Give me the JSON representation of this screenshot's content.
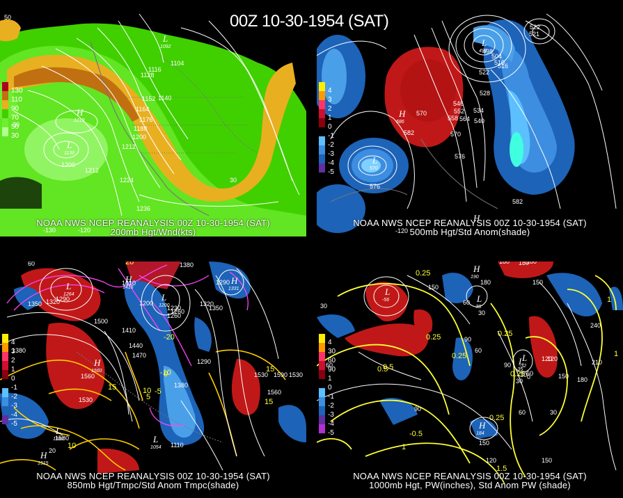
{
  "title": "00Z 10-30-1954 (SAT)",
  "panels": [
    {
      "id": "p1",
      "caption_line1": "NOAA NWS NCEP REANALYSIS 00Z 10-30-1954 (SAT)",
      "caption_line2": "200mb Hgt/Wnd(kts)",
      "legend": [
        "130",
        "110",
        "90",
        "70",
        "50",
        "30"
      ],
      "legend_colors": [
        "#b00020",
        "#c07010",
        "#e8b020",
        "#40d000",
        "#70ee30",
        "#b0ff90"
      ],
      "contour_labels": [
        "1104",
        "1116",
        "1128",
        "1140",
        "1152",
        "1164",
        "1176",
        "1188",
        "1200",
        "1212",
        "1212",
        "1224",
        "1236",
        "1200"
      ],
      "centers": [
        {
          "type": "H",
          "value": "1219"
        },
        {
          "type": "L",
          "value": "1136"
        },
        {
          "type": "L",
          "value": "1092"
        }
      ],
      "lon_labels": [
        "-130",
        "-120"
      ],
      "lat_labels": [
        "50",
        "30",
        "30"
      ]
    },
    {
      "id": "p2",
      "caption_line1": "NOAA NWS NCEP REANALYSIS 00Z 10-30-1954 (SAT)",
      "caption_line2": "500mb Hgt/Std Anom(shade)",
      "legend": [
        "4",
        "3",
        "2",
        "1",
        "0",
        "-1",
        "-2",
        "-3",
        "-4",
        "-5"
      ],
      "contour_labels": [
        "522",
        "528",
        "534",
        "540",
        "546",
        "552",
        "558",
        "564",
        "570",
        "576",
        "582",
        "582",
        "576",
        "570",
        "498",
        "504",
        "510",
        "516",
        "522",
        "521"
      ],
      "centers": [
        {
          "type": "H",
          "value": "586"
        },
        {
          "type": "L",
          "value": "570"
        },
        {
          "type": "L",
          "value": "491"
        },
        {
          "type": "H",
          "value": ""
        }
      ],
      "lon_labels": [
        "-120"
      ]
    },
    {
      "id": "p3",
      "caption_line1": "NOAA NWS NCEP REANALYSIS 00Z 10-30-1954 (SAT)",
      "caption_line2": "850mb Hgt/Tmpc/Std Anom Tmpc(shade)",
      "legend": [
        "4",
        "3",
        "2",
        "1",
        "0",
        "-1",
        "-2",
        "-3",
        "-4",
        "-5"
      ],
      "contour_labels": [
        "1440",
        "1380",
        "1410",
        "1350",
        "1320",
        "1290",
        "1200",
        "1230",
        "1260",
        "1320",
        "1350",
        "1290",
        "1410",
        "1440",
        "1470",
        "1500",
        "1380",
        "1560",
        "1530",
        "1530",
        "1560",
        "1590",
        "1530",
        "1580",
        "1380",
        "1290",
        "1110",
        "1260"
      ],
      "temp_labels": [
        "15",
        "10",
        "5",
        "15",
        "15",
        "10",
        "20",
        "-20",
        "-10",
        "0",
        "-5"
      ],
      "centers": [
        {
          "type": "L",
          "value": "1264"
        },
        {
          "type": "H",
          "value": "1416"
        },
        {
          "type": "L",
          "value": "1200"
        },
        {
          "type": "H",
          "value": "1560"
        },
        {
          "type": "H",
          "value": "1515"
        },
        {
          "type": "L",
          "value": "1580"
        },
        {
          "type": "H",
          "value": "1331"
        },
        {
          "type": "L",
          "value": "1054"
        }
      ],
      "lon_labels": [
        "60",
        "20"
      ]
    },
    {
      "id": "p4",
      "caption_line1": "NOAA NWS NCEP REANALYSIS 00Z 10-30-1954 (SAT)",
      "caption_line2": "1000mb Hgt, PW(inches), Std Anom PW (shade)",
      "legend": [
        "4",
        "30",
        "60",
        "90",
        "1",
        "0",
        "-1",
        "-2",
        "-3",
        "-4",
        "-5"
      ],
      "contour_labels": [
        "150",
        "180",
        "150",
        "60",
        "30",
        "30",
        "60",
        "90",
        "60",
        "120",
        "90",
        "30",
        "60",
        "0",
        "-30",
        "120",
        "150",
        "180",
        "210",
        "150",
        "60",
        "30",
        "240",
        "180",
        "120",
        "150",
        "90"
      ],
      "pw_labels": [
        "0.25",
        "0.25",
        "0.25",
        "0.5",
        "0.5",
        "0.25",
        "0.25",
        "0.25",
        "1",
        "1.5",
        "-0.5",
        "1",
        "1"
      ],
      "centers": [
        {
          "type": "L",
          "value": "-56"
        },
        {
          "type": "H",
          "value": "190"
        },
        {
          "type": "L",
          "value": "-38"
        },
        {
          "type": "L",
          "value": "-32"
        },
        {
          "type": "H",
          "value": "184"
        },
        {
          "type": "L",
          "value": "-35"
        }
      ],
      "lon_labels": [
        "180",
        "180"
      ]
    }
  ]
}
